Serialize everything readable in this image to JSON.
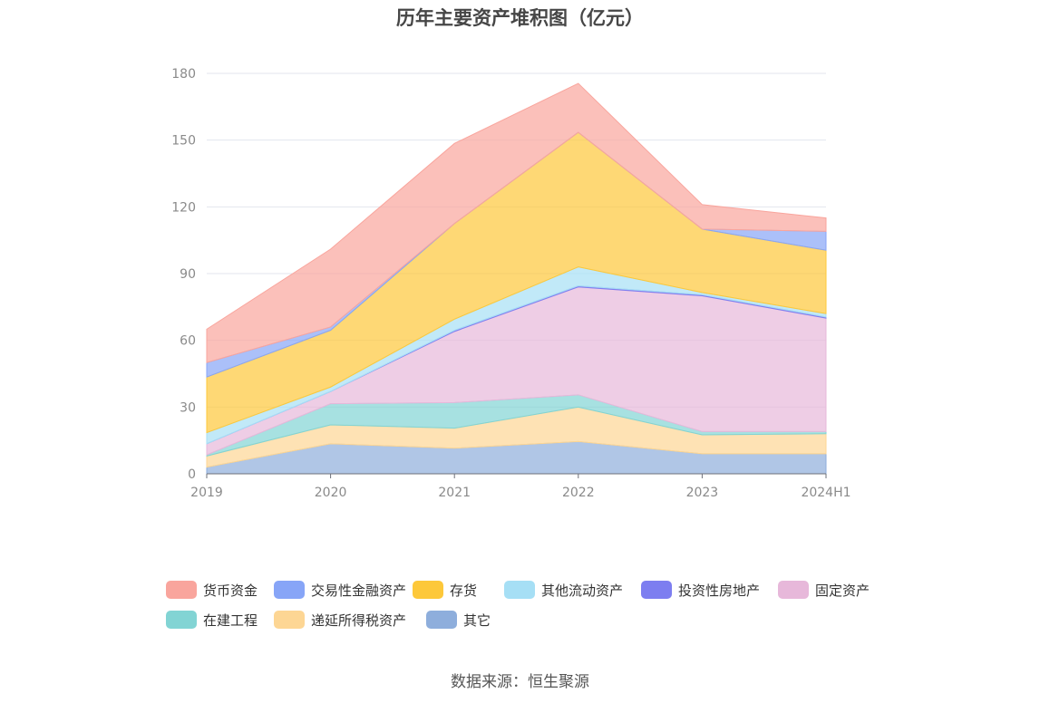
{
  "chart_data": {
    "type": "area",
    "stacked": true,
    "title": "历年主要资产堆积图（亿元）",
    "categories": [
      "2019",
      "2020",
      "2021",
      "2022",
      "2023",
      "2024H1"
    ],
    "y_ticks": [
      "0",
      "30",
      "60",
      "90",
      "120",
      "150",
      "180"
    ],
    "ylim": [
      0,
      180
    ],
    "series": [
      {
        "name": "其它",
        "color": "#8eaedc",
        "values": [
          3,
          13.5,
          11.5,
          14.5,
          9,
          9
        ]
      },
      {
        "name": "递延所得税资产",
        "color": "#fdd694",
        "values": [
          5,
          8.5,
          9,
          15.5,
          8.5,
          9
        ]
      },
      {
        "name": "在建工程",
        "color": "#82d4d4",
        "values": [
          0.5,
          9.5,
          11.5,
          5.5,
          1.5,
          1
        ]
      },
      {
        "name": "固定资产",
        "color": "#e7b8da",
        "values": [
          5,
          5.5,
          32,
          48.5,
          61,
          51
        ]
      },
      {
        "name": "投资性房地产",
        "color": "#7d7ef0",
        "values": [
          0,
          0,
          0.5,
          0.5,
          0.5,
          0.5
        ]
      },
      {
        "name": "其他流动资产",
        "color": "#a6dff5",
        "values": [
          5,
          2,
          5,
          8.5,
          1,
          1.5
        ]
      },
      {
        "name": "存货",
        "color": "#fdc83a",
        "values": [
          25,
          25.5,
          43,
          60.5,
          28.5,
          28.5
        ]
      },
      {
        "name": "交易性金融资产",
        "color": "#87a5f7",
        "values": [
          6.5,
          1.5,
          0,
          0,
          0,
          8.5
        ]
      },
      {
        "name": "货币资金",
        "color": "#f9a59d",
        "values": [
          15,
          35,
          36,
          22,
          11,
          6
        ]
      }
    ],
    "legend_order": [
      "货币资金",
      "交易性金融资产",
      "存货",
      "其他流动资产",
      "投资性房地产",
      "固定资产",
      "在建工程",
      "递延所得税资产",
      "其它"
    ],
    "source": "数据来源：恒生聚源"
  }
}
